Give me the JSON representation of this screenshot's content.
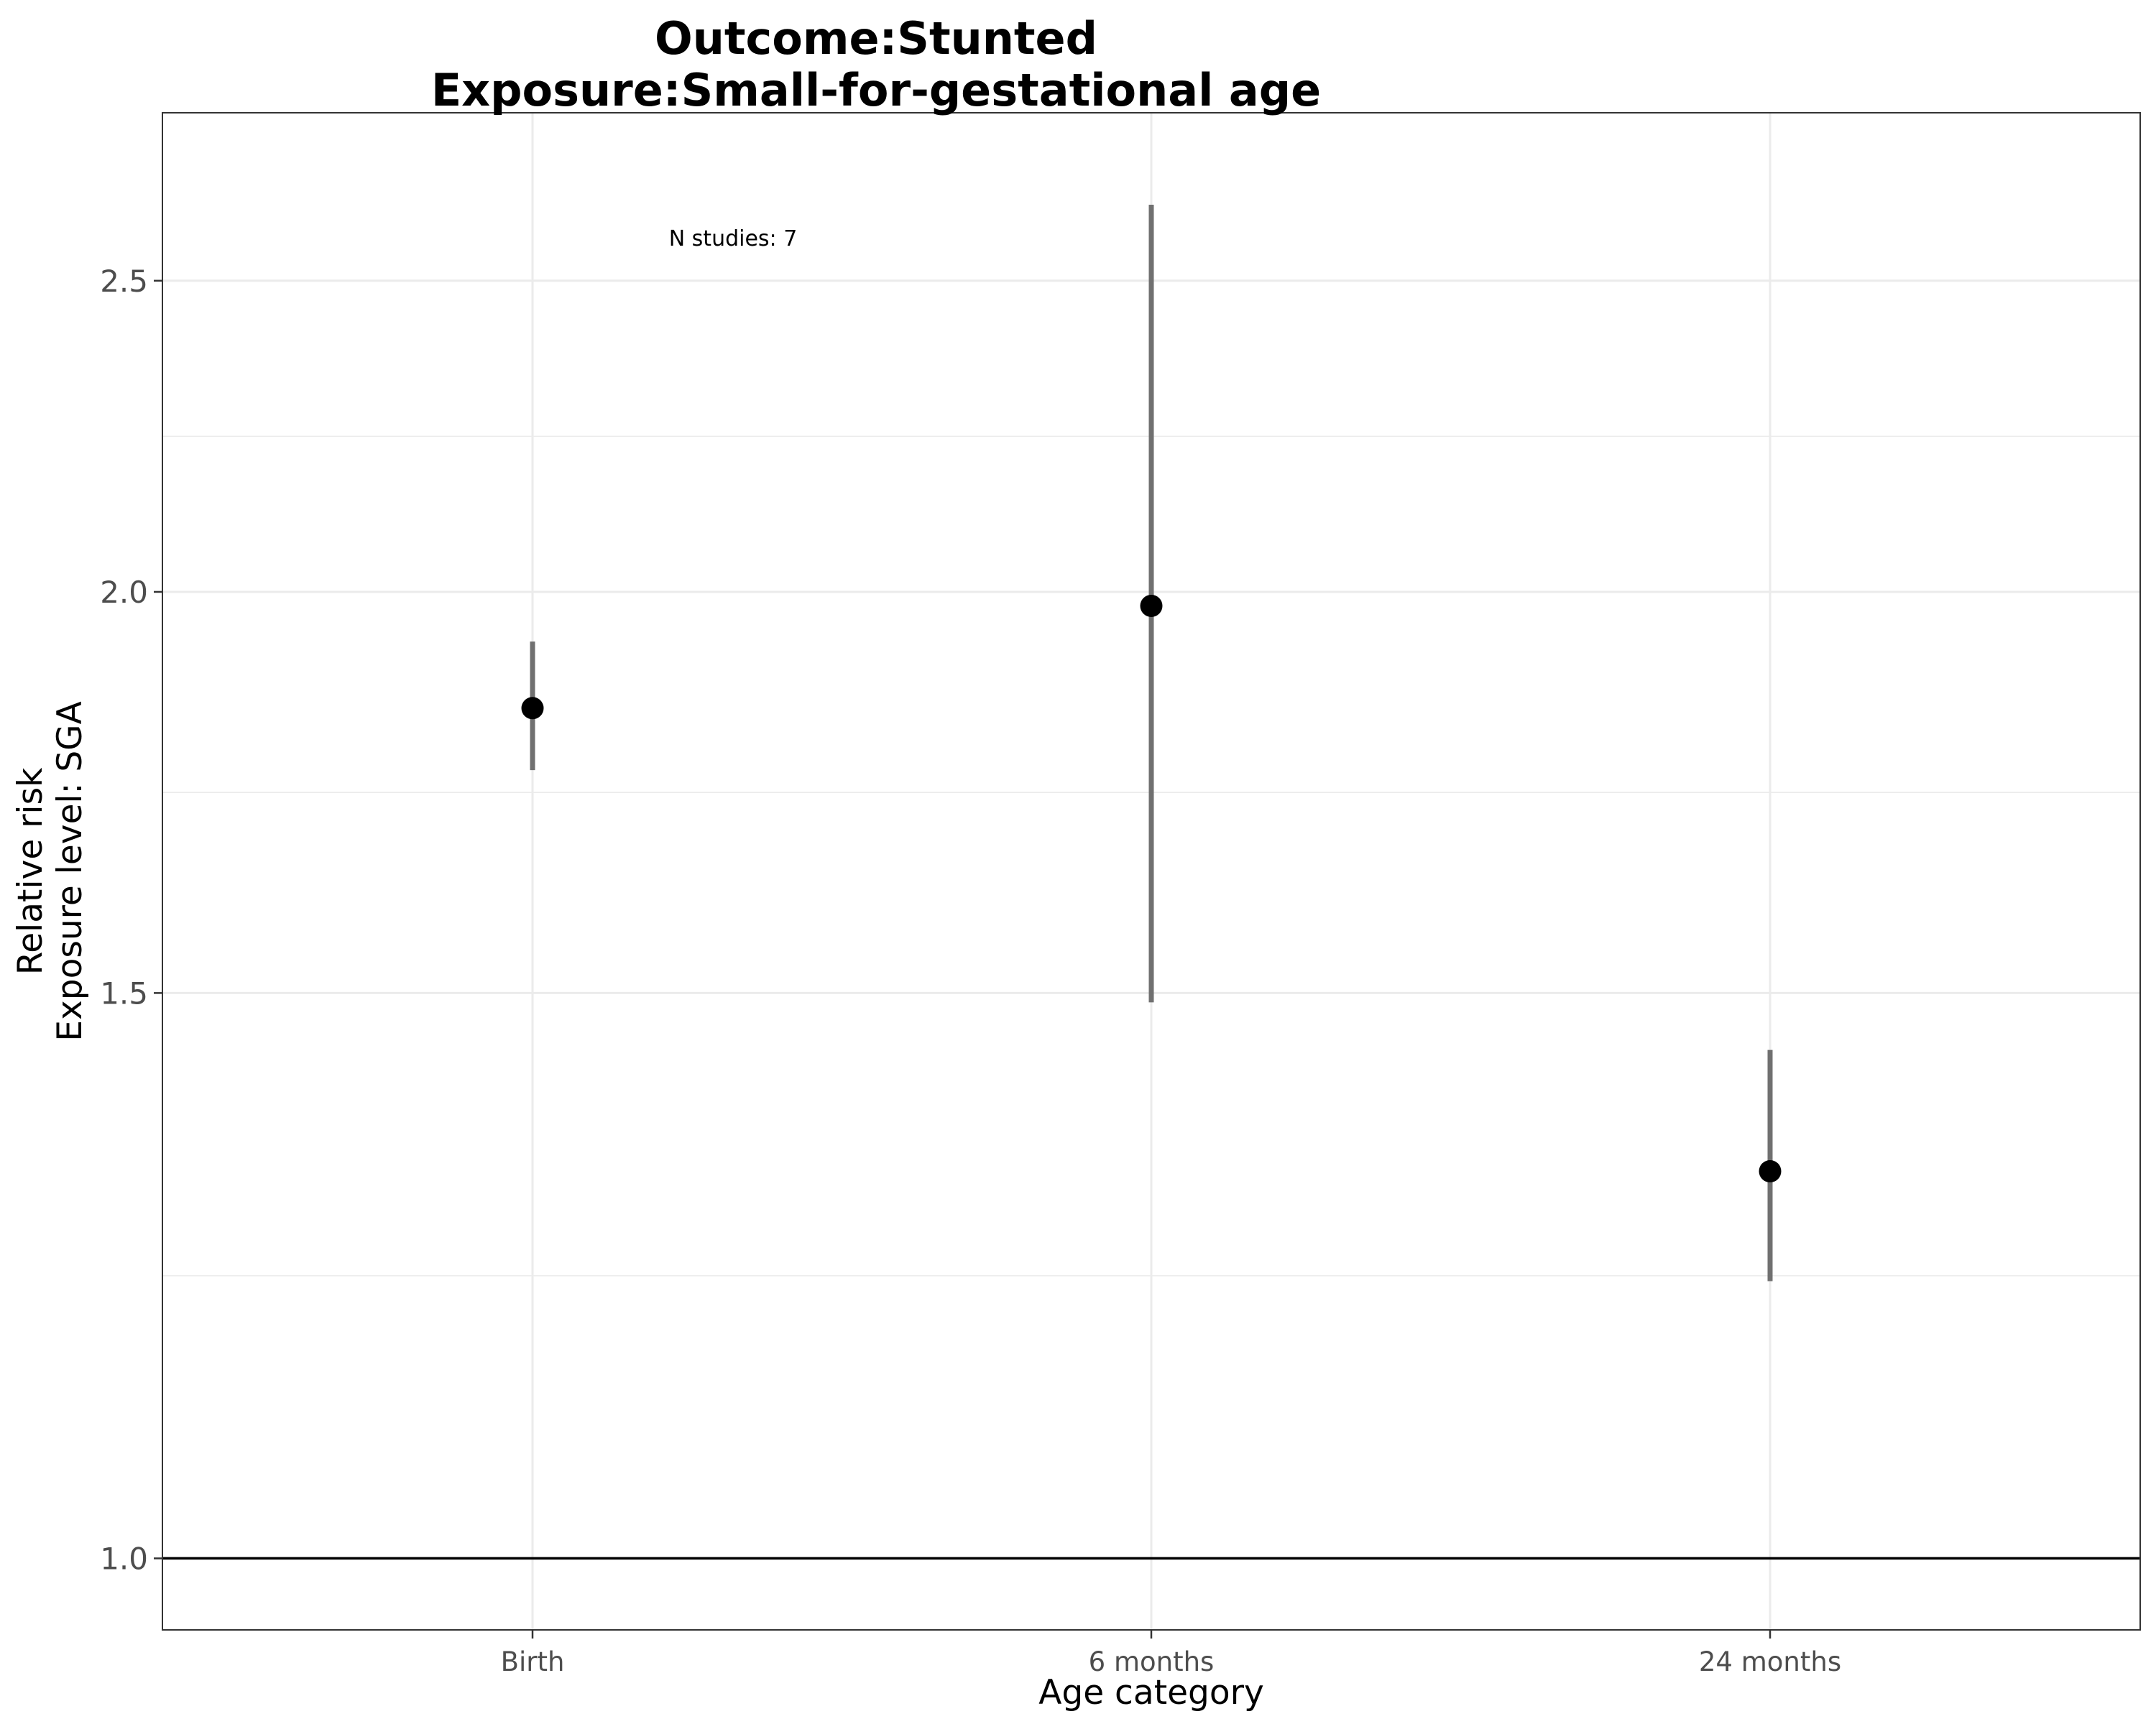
{
  "chart_data": {
    "type": "scatter",
    "title": "Outcome:Stunted",
    "subtitle": "Exposure:Small-for-gestational age",
    "xlabel": "Age category",
    "ylabel": [
      "Relative risk",
      "Exposure level: SGA"
    ],
    "categories": [
      "Birth",
      "6 months",
      "24 months"
    ],
    "estimates": [
      1.84,
      1.98,
      1.32
    ],
    "ci_lower": [
      1.76,
      1.49,
      1.22
    ],
    "ci_upper": [
      1.93,
      2.64,
      1.44
    ],
    "yscale": "log",
    "yticks": [
      1.0,
      1.5,
      2.0,
      2.5
    ],
    "ytick_labels": [
      "1.0",
      "1.5",
      "2.0",
      "2.5"
    ],
    "ylim": [
      0.95,
      2.82
    ],
    "reference_line": 1.0,
    "annotation": "N studies: 7",
    "grid": true,
    "legend": "none",
    "colors": {
      "point": "#000000",
      "errorbar": "#707070",
      "grid": "#ebebeb",
      "refline": "#000000"
    }
  }
}
